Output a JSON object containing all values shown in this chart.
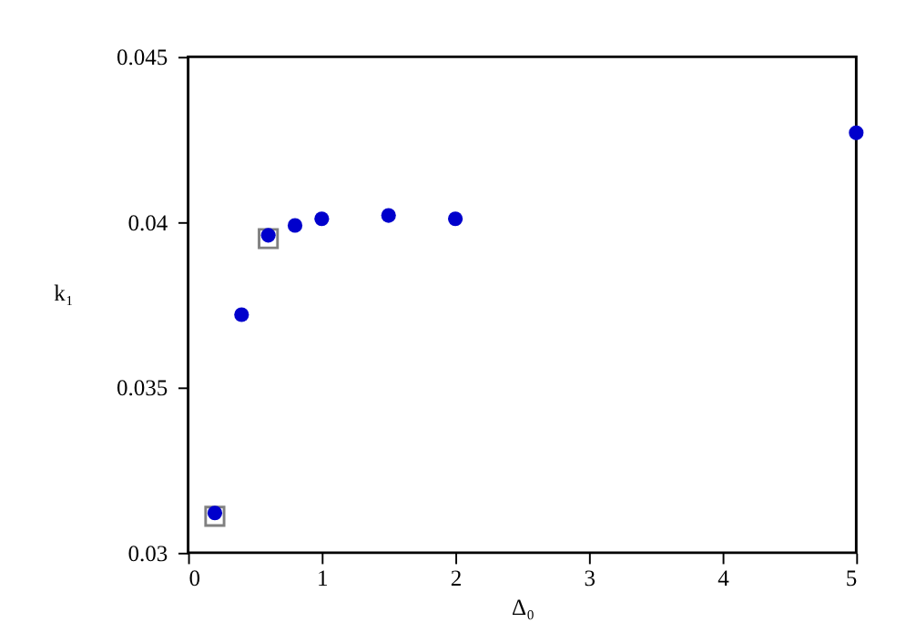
{
  "chart_data": {
    "type": "scatter",
    "xlabel": "Δ₀",
    "ylabel": "k₁",
    "xlim": [
      0,
      5
    ],
    "xticks": [
      0,
      1,
      2,
      3,
      4,
      5
    ],
    "ylim": [
      0.03,
      0.045
    ],
    "yticks": [
      0.03,
      0.035,
      0.04,
      0.045
    ],
    "grid": false,
    "legend": false,
    "series": [
      {
        "color": "#808080",
        "marker": "square",
        "x": [
          0.2,
          0.6
        ],
        "values": [
          0.0311,
          0.0395
        ]
      },
      {
        "color": "#0000cc",
        "marker": "circle",
        "x": [
          0.2,
          0.4,
          0.6,
          0.8,
          1,
          1.5,
          2,
          5
        ],
        "values": [
          0.0312,
          0.0372,
          0.0396,
          0.0399,
          0.0401,
          0.0402,
          0.0401,
          0.0427
        ]
      }
    ]
  }
}
